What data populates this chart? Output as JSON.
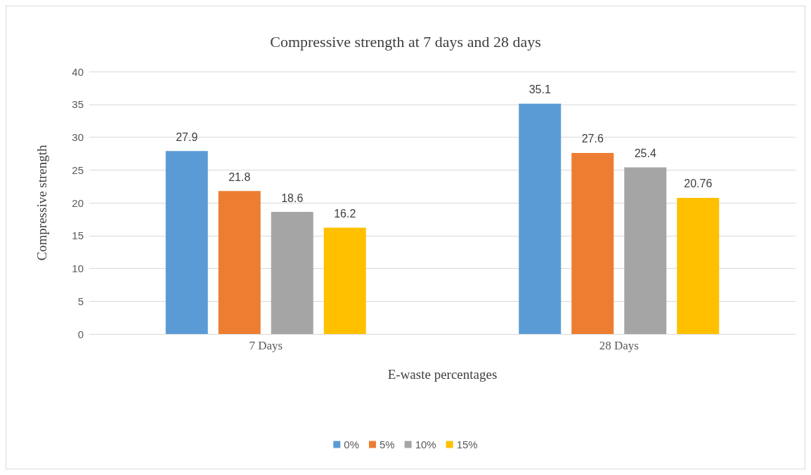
{
  "chart_data": {
    "type": "bar",
    "title": "Compressive strength at 7 days and 28 days",
    "xlabel": "E-waste percentages",
    "ylabel": "Compressive strength",
    "categories": [
      "7 Days",
      "28 Days"
    ],
    "series": [
      {
        "name": "0%",
        "color": "#5b9bd5",
        "values": [
          27.9,
          35.1
        ]
      },
      {
        "name": "5%",
        "color": "#ed7d31",
        "values": [
          21.8,
          27.6
        ]
      },
      {
        "name": "10%",
        "color": "#a5a5a5",
        "values": [
          18.6,
          25.4
        ]
      },
      {
        "name": "15%",
        "color": "#ffc000",
        "values": [
          16.2,
          20.76
        ]
      }
    ],
    "ylim": [
      0,
      40
    ],
    "yticks": [
      0,
      5,
      10,
      15,
      20,
      25,
      30,
      35,
      40
    ],
    "grid": "y",
    "legend": "bottom",
    "data_labels": true
  }
}
